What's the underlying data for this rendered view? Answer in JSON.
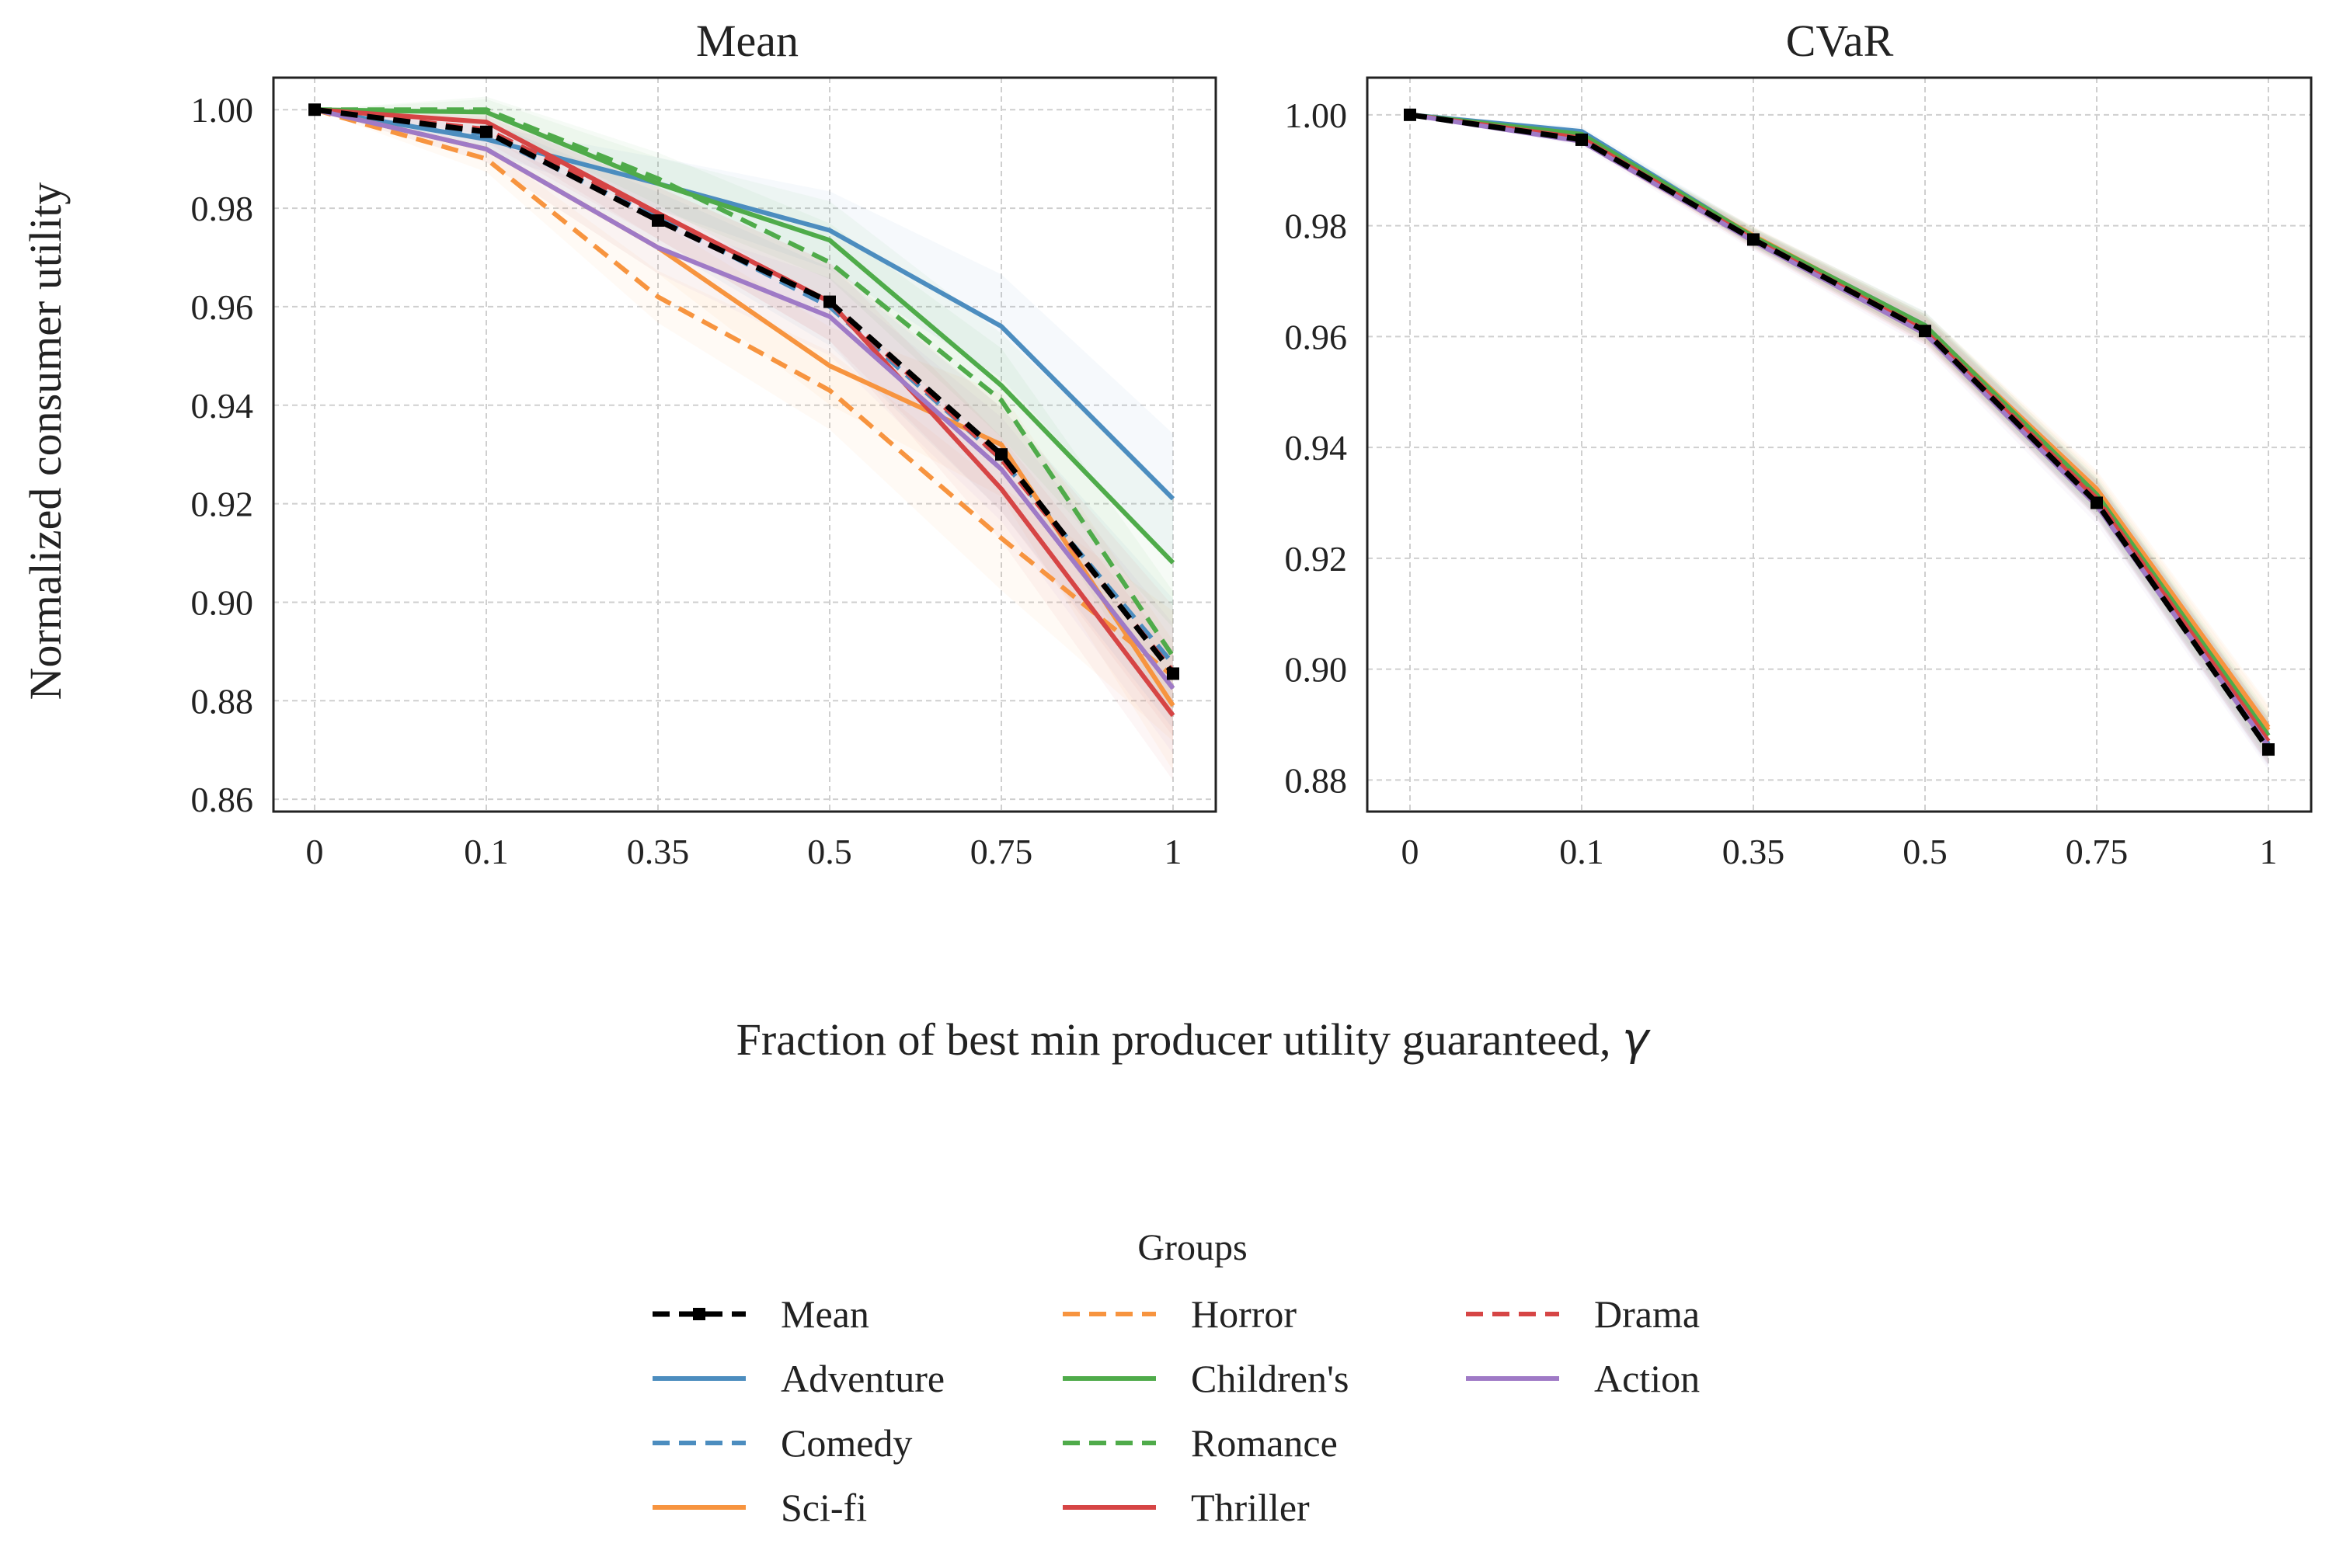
{
  "figure": {
    "ylabel": "Normalized consumer utility",
    "xlabel": "Fraction of best min producer utility guaranteed, ",
    "xlabel_symbol": "γ"
  },
  "legend": {
    "title": "Groups",
    "placement": "lower-center",
    "columns": 3
  },
  "chart_data": [
    {
      "type": "line",
      "title": "Mean",
      "categories": [
        "0",
        "0.1",
        "0.35",
        "0.5",
        "0.75",
        "1"
      ],
      "yticks": [
        "0.86",
        "0.88",
        "0.90",
        "0.92",
        "0.94",
        "0.96",
        "0.98",
        "1.00"
      ],
      "ylim": [
        0.8575,
        1.0065
      ],
      "grid": true,
      "series": [
        {
          "name": "Mean",
          "color": "#000000",
          "dash": "dashed",
          "marker": "square",
          "values": [
            1.0,
            0.9955,
            0.9775,
            0.961,
            0.93,
            0.8855
          ]
        },
        {
          "name": "Adventure",
          "color": "#4c8dbf",
          "dash": "solid",
          "values": [
            1.0,
            0.994,
            0.985,
            0.9755,
            0.956,
            0.921
          ]
        },
        {
          "name": "Comedy",
          "color": "#4c8dbf",
          "dash": "dashed",
          "values": [
            1.0,
            0.995,
            0.978,
            0.96,
            0.929,
            0.8875
          ]
        },
        {
          "name": "Sci-fi",
          "color": "#f7943f",
          "dash": "solid",
          "values": [
            1.0,
            0.992,
            0.972,
            0.948,
            0.932,
            0.879
          ]
        },
        {
          "name": "Horror",
          "color": "#f7943f",
          "dash": "dashed",
          "values": [
            1.0,
            0.99,
            0.962,
            0.943,
            0.913,
            0.885
          ]
        },
        {
          "name": "Children's",
          "color": "#4fab4a",
          "dash": "solid",
          "values": [
            1.0,
            0.9995,
            0.985,
            0.9735,
            0.944,
            0.908
          ]
        },
        {
          "name": "Romance",
          "color": "#4fab4a",
          "dash": "dashed",
          "values": [
            1.0,
            1.0,
            0.986,
            0.969,
            0.941,
            0.889
          ]
        },
        {
          "name": "Thriller",
          "color": "#d64545",
          "dash": "solid",
          "values": [
            1.0,
            0.9975,
            0.979,
            0.961,
            0.923,
            0.877
          ]
        },
        {
          "name": "Drama",
          "color": "#d64545",
          "dash": "dashed",
          "values": [
            1.0,
            0.996,
            0.979,
            0.961,
            0.929,
            0.886
          ]
        },
        {
          "name": "Action",
          "color": "#9f7ac6",
          "dash": "solid",
          "values": [
            1.0,
            0.992,
            0.972,
            0.958,
            0.927,
            0.8825
          ]
        }
      ]
    },
    {
      "type": "line",
      "title": "CVaR",
      "categories": [
        "0",
        "0.1",
        "0.35",
        "0.5",
        "0.75",
        "1"
      ],
      "yticks": [
        "0.88",
        "0.90",
        "0.92",
        "0.94",
        "0.96",
        "0.98",
        "1.00"
      ],
      "ylim": [
        0.8743,
        1.0067
      ],
      "grid": true,
      "series": [
        {
          "name": "Mean",
          "color": "#000000",
          "dash": "dashed",
          "marker": "square",
          "values": [
            1.0,
            0.9955,
            0.9775,
            0.961,
            0.93,
            0.8855
          ]
        },
        {
          "name": "Adventure",
          "color": "#4c8dbf",
          "dash": "solid",
          "values": [
            1.0,
            0.997,
            0.978,
            0.962,
            0.9305,
            0.8865
          ]
        },
        {
          "name": "Comedy",
          "color": "#4c8dbf",
          "dash": "dashed",
          "values": [
            1.0,
            0.9962,
            0.9778,
            0.9615,
            0.931,
            0.887
          ]
        },
        {
          "name": "Sci-fi",
          "color": "#f7943f",
          "dash": "solid",
          "values": [
            1.0,
            0.9958,
            0.9782,
            0.9618,
            0.9325,
            0.8895
          ]
        },
        {
          "name": "Horror",
          "color": "#f7943f",
          "dash": "dashed",
          "values": [
            1.0,
            0.9955,
            0.978,
            0.9615,
            0.932,
            0.889
          ]
        },
        {
          "name": "Children's",
          "color": "#4fab4a",
          "dash": "solid",
          "values": [
            1.0,
            0.9965,
            0.978,
            0.962,
            0.9315,
            0.888
          ]
        },
        {
          "name": "Romance",
          "color": "#4fab4a",
          "dash": "dashed",
          "values": [
            1.0,
            0.996,
            0.9778,
            0.9615,
            0.931,
            0.8875
          ]
        },
        {
          "name": "Thriller",
          "color": "#d64545",
          "dash": "solid",
          "values": [
            1.0,
            0.9958,
            0.9775,
            0.961,
            0.9305,
            0.887
          ]
        },
        {
          "name": "Drama",
          "color": "#d64545",
          "dash": "dashed",
          "values": [
            1.0,
            0.9956,
            0.9776,
            0.9612,
            0.9308,
            0.8868
          ]
        },
        {
          "name": "Action",
          "color": "#9f7ac6",
          "dash": "solid",
          "values": [
            1.0,
            0.9952,
            0.9772,
            0.9605,
            0.9295,
            0.886
          ]
        }
      ]
    }
  ]
}
